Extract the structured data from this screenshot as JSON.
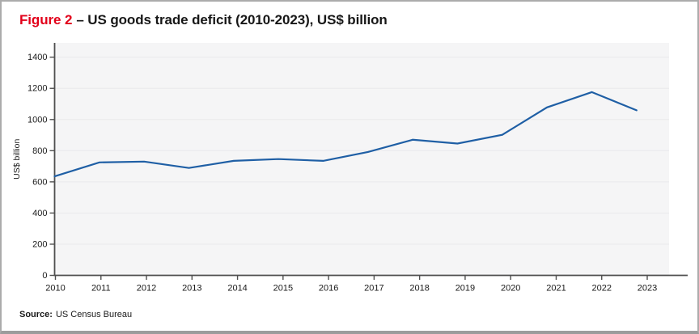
{
  "title": {
    "figure_label": "Figure 2",
    "rest": "– US goods trade deficit (2010-2023), US$ billion"
  },
  "source": {
    "label": "Source:",
    "text": "US Census Bureau"
  },
  "colors": {
    "accent_red": "#e2001a",
    "line": "#1f5fa5",
    "plot_bg": "#f5f5f6",
    "gridline": "#ebebed",
    "axis": "#4f4f4f",
    "text": "#1a1a1a"
  },
  "chart_data": {
    "type": "line",
    "title": "Figure 2 – US goods trade deficit (2010-2023), US$ billion",
    "x": [
      2010,
      2011,
      2012,
      2013,
      2014,
      2015,
      2016,
      2017,
      2018,
      2019,
      2020,
      2021,
      2022,
      2023
    ],
    "series": [
      {
        "name": "US goods trade deficit",
        "values": [
          635,
          725,
          730,
          689,
          735,
          746,
          735,
          792,
          870,
          846,
          902,
          1078,
          1176,
          1059
        ]
      }
    ],
    "xlabel": "",
    "ylabel": "US$ billion",
    "ylim": [
      0,
      1400
    ],
    "ytick_interval": 200,
    "grid": true,
    "legend": false
  }
}
